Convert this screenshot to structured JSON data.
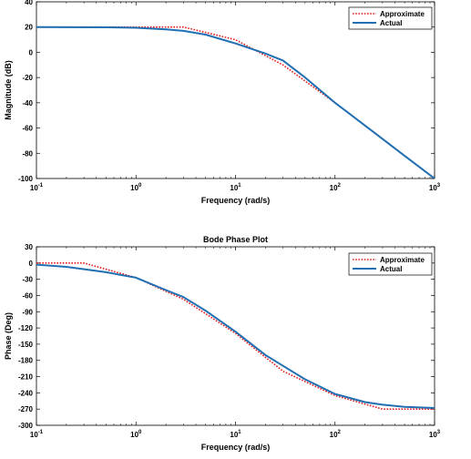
{
  "chart_data": [
    {
      "type": "line",
      "title": "",
      "xlabel": "Frequency (rad/s)",
      "ylabel": "Magnitude (dB)",
      "xscale": "log",
      "xlim": [
        0.1,
        1000
      ],
      "ylim": [
        -100,
        40
      ],
      "x_ticks": [
        {
          "base": "10",
          "exp": "-1",
          "value": 0.1
        },
        {
          "base": "10",
          "exp": "0",
          "value": 1
        },
        {
          "base": "10",
          "exp": "1",
          "value": 10
        },
        {
          "base": "10",
          "exp": "2",
          "value": 100
        },
        {
          "base": "10",
          "exp": "3",
          "value": 1000
        }
      ],
      "y_ticks": [
        {
          "label": "40",
          "value": 40
        },
        {
          "label": "20",
          "value": 20
        },
        {
          "label": "0",
          "value": 0
        },
        {
          "label": "-20",
          "value": -20
        },
        {
          "label": "-40",
          "value": -40
        },
        {
          "label": "-60",
          "value": -60
        },
        {
          "label": "-80",
          "value": -80
        },
        {
          "label": "-100",
          "value": -100
        }
      ],
      "grid": false,
      "legend_position": "top-right",
      "series": [
        {
          "name": "Approximate",
          "color": "#e31a1c",
          "style": "dotted",
          "x": [
            0.1,
            1,
            3,
            10,
            30,
            100,
            1000
          ],
          "y": [
            20,
            20,
            20,
            10,
            -10,
            -40,
            -100
          ]
        },
        {
          "name": "Actual",
          "color": "#1f6fb2",
          "style": "solid",
          "x": [
            0.1,
            0.5,
            1,
            2,
            3,
            5,
            10,
            20,
            30,
            50,
            100,
            200,
            500,
            1000
          ],
          "y": [
            20,
            19.8,
            19.4,
            18.2,
            17,
            14,
            7,
            -1,
            -6.5,
            -20,
            -40,
            -58,
            -82,
            -100
          ]
        }
      ]
    },
    {
      "type": "line",
      "title": "Bode Phase Plot",
      "xlabel": "Frequency (rad/s)",
      "ylabel": "Phase (Deg)",
      "xscale": "log",
      "xlim": [
        0.1,
        1000
      ],
      "ylim": [
        -300,
        30
      ],
      "x_ticks": [
        {
          "base": "10",
          "exp": "-1",
          "value": 0.1
        },
        {
          "base": "10",
          "exp": "0",
          "value": 1
        },
        {
          "base": "10",
          "exp": "1",
          "value": 10
        },
        {
          "base": "10",
          "exp": "2",
          "value": 100
        },
        {
          "base": "10",
          "exp": "3",
          "value": 1000
        }
      ],
      "y_ticks": [
        {
          "label": "30",
          "value": 30
        },
        {
          "label": "0",
          "value": 0
        },
        {
          "label": "-30",
          "value": -30
        },
        {
          "label": "-60",
          "value": -60
        },
        {
          "label": "-90",
          "value": -90
        },
        {
          "label": "-120",
          "value": -120
        },
        {
          "label": "-150",
          "value": -150
        },
        {
          "label": "-180",
          "value": -180
        },
        {
          "label": "-210",
          "value": -210
        },
        {
          "label": "-240",
          "value": -240
        },
        {
          "label": "-270",
          "value": -270
        },
        {
          "label": "-300",
          "value": -300
        }
      ],
      "grid": false,
      "legend_position": "top-right",
      "series": [
        {
          "name": "Approximate",
          "color": "#e31a1c",
          "style": "dotted",
          "x": [
            0.1,
            0.3,
            1,
            3,
            10,
            30,
            100,
            300,
            1000
          ],
          "y": [
            0,
            0,
            -27,
            -67,
            -130,
            -200,
            -245,
            -270,
            -270
          ]
        },
        {
          "name": "Actual",
          "color": "#1f6fb2",
          "style": "solid",
          "x": [
            0.1,
            0.2,
            0.5,
            1,
            2,
            3,
            5,
            10,
            20,
            30,
            50,
            100,
            200,
            300,
            500,
            1000
          ],
          "y": [
            -3,
            -7,
            -17,
            -27,
            -50,
            -63,
            -88,
            -127,
            -170,
            -190,
            -215,
            -242,
            -257,
            -262,
            -266,
            -268
          ]
        }
      ]
    }
  ]
}
